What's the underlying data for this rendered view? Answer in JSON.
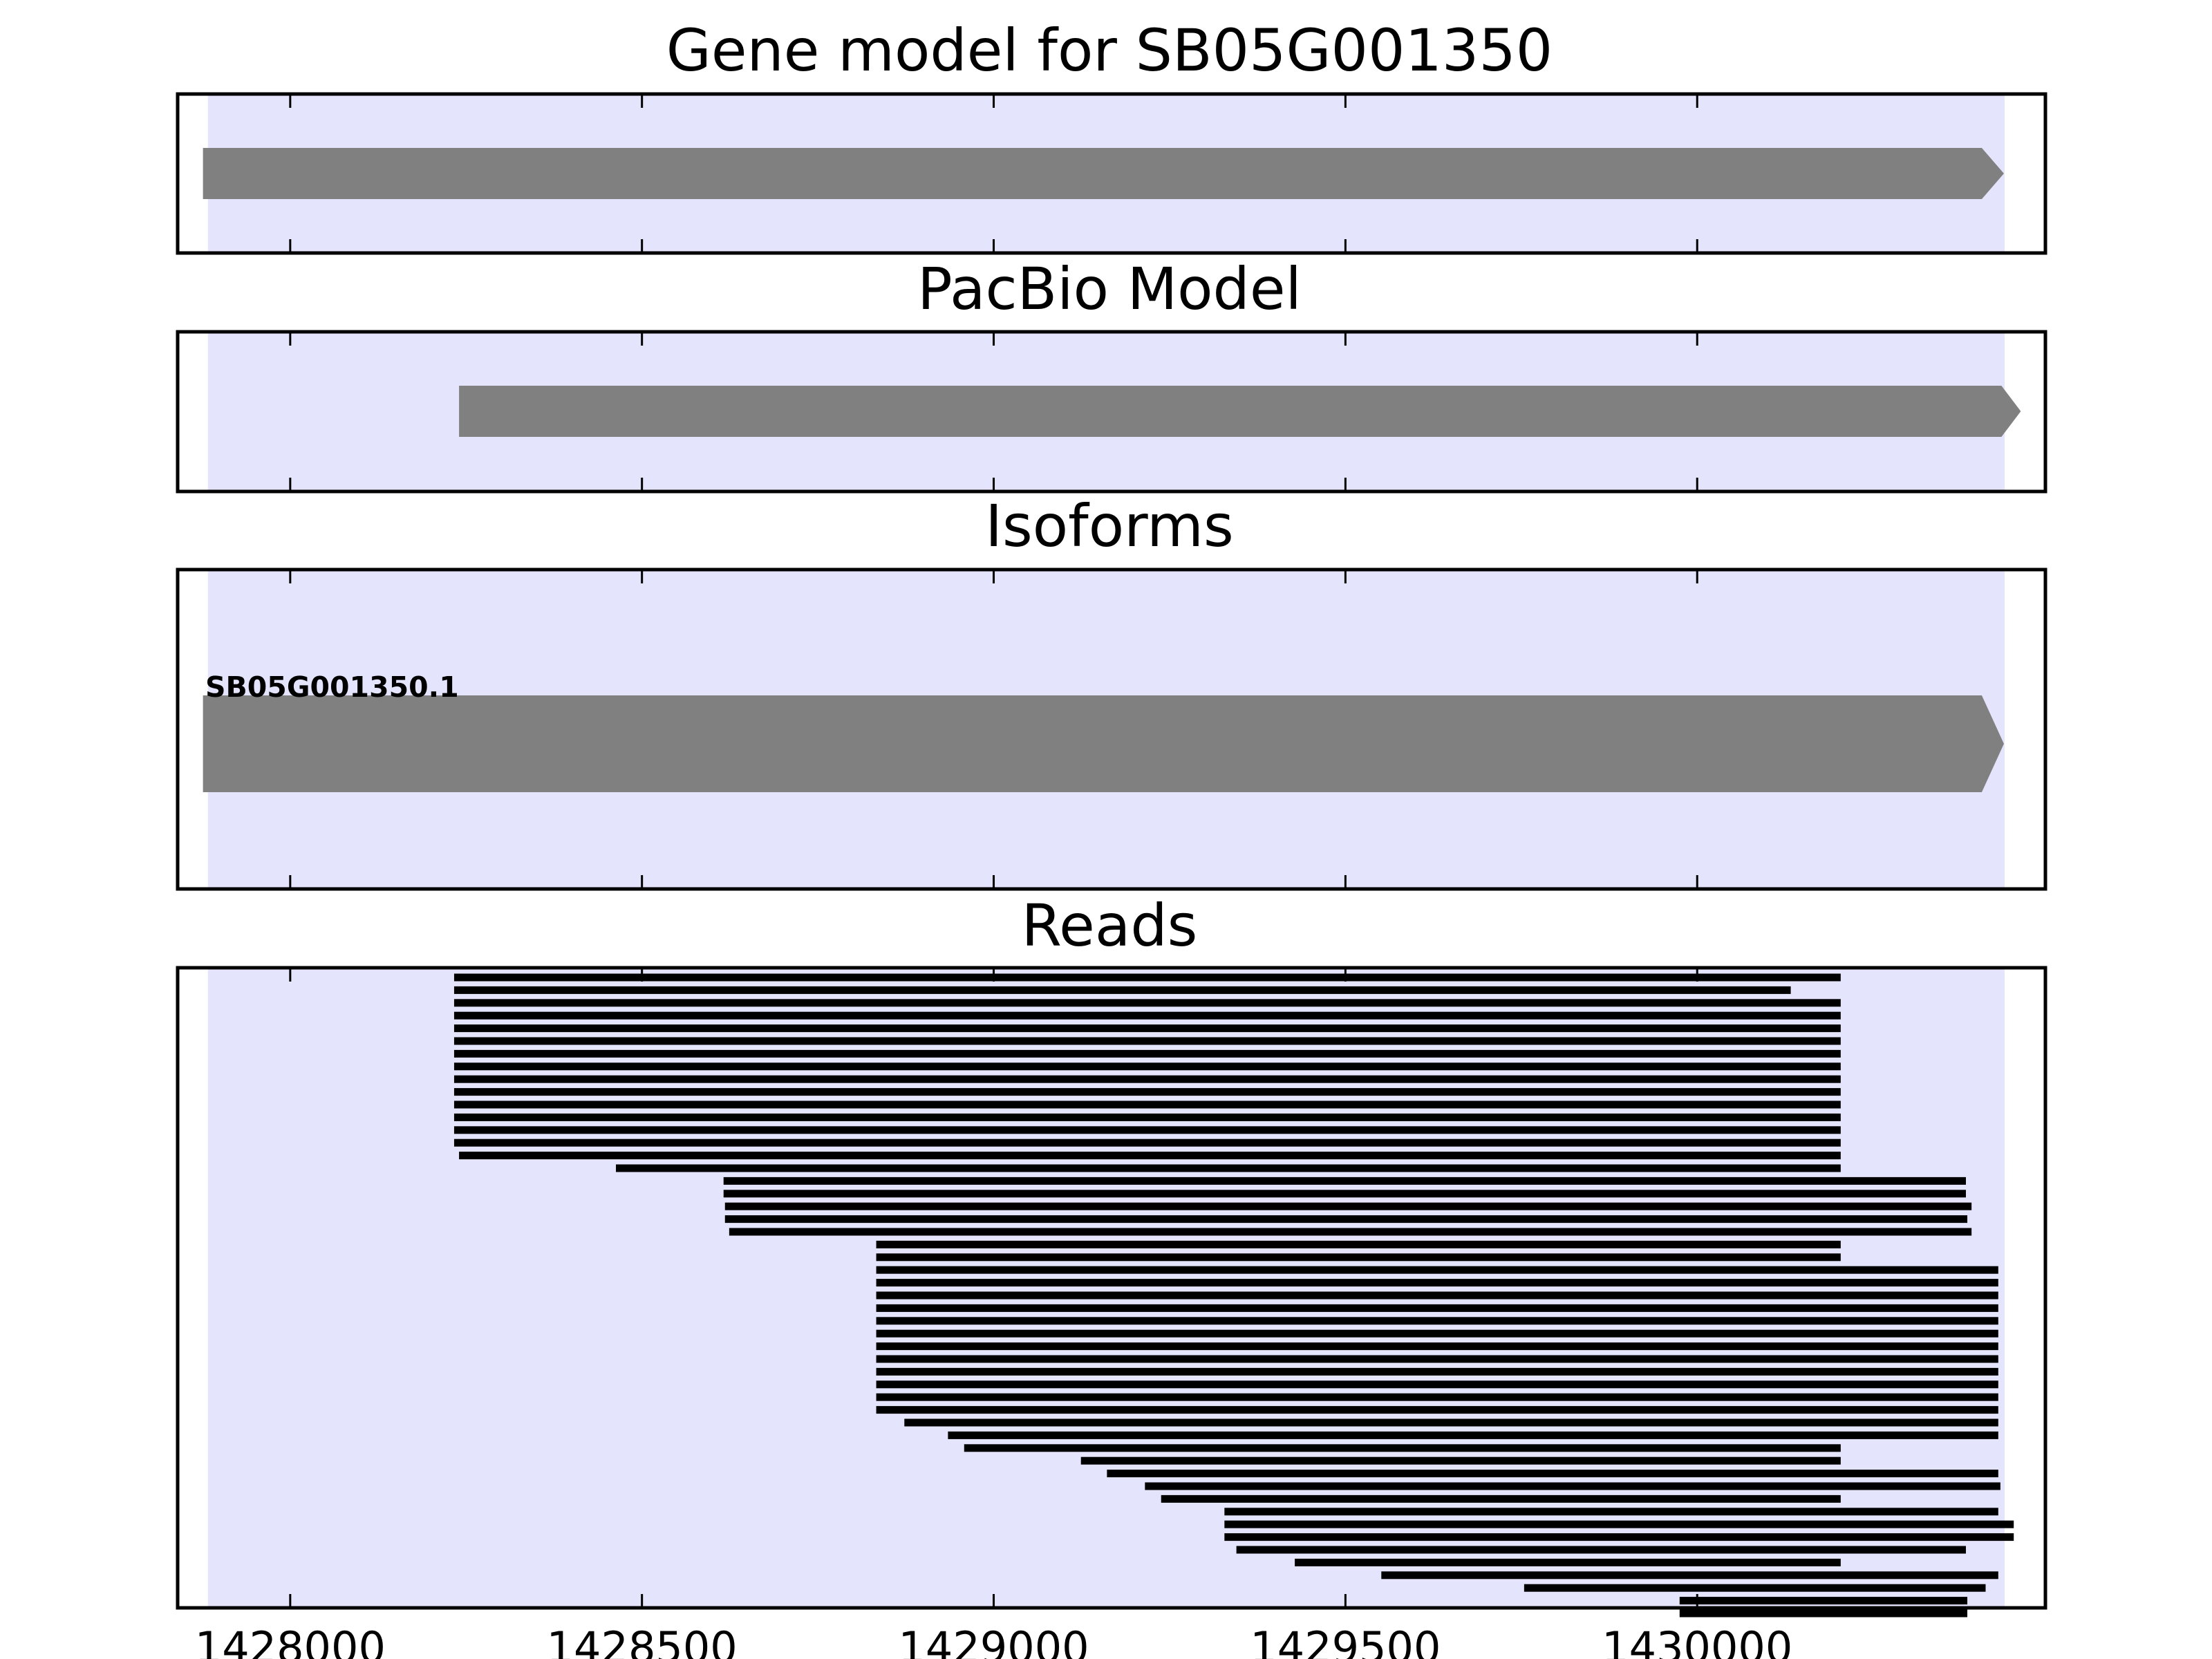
{
  "chart_data": {
    "type": "gene-track",
    "x_ticks": [
      1428000,
      1428500,
      1429000,
      1429500,
      1430000
    ],
    "x_range": [
      1427840,
      1430495
    ],
    "colors": {
      "highlight": "#e4e4fc",
      "feature": "#808080",
      "read": "#000000",
      "frame": "#000000"
    },
    "highlight_region": [
      1427883,
      1430437
    ],
    "panels": [
      {
        "id": "gene-model",
        "title": "Gene model for SB05G001350",
        "features": [
          {
            "start": 1427876,
            "end": 1430436,
            "strand": "+"
          }
        ]
      },
      {
        "id": "pacbio-model",
        "title": "PacBio Model",
        "features": [
          {
            "start": 1428240,
            "end": 1430460,
            "strand": "+"
          }
        ]
      },
      {
        "id": "isoforms",
        "title": "Isoforms",
        "features": [
          {
            "label": "SB05G001350.1",
            "start": 1427876,
            "end": 1430436,
            "strand": "+"
          }
        ]
      },
      {
        "id": "reads",
        "title": "Reads",
        "reads": [
          [
            1428233,
            1430204
          ],
          [
            1428233,
            1430133
          ],
          [
            1428233,
            1430204
          ],
          [
            1428233,
            1430204
          ],
          [
            1428233,
            1430204
          ],
          [
            1428233,
            1430204
          ],
          [
            1428233,
            1430204
          ],
          [
            1428233,
            1430204
          ],
          [
            1428233,
            1430204
          ],
          [
            1428233,
            1430204
          ],
          [
            1428233,
            1430204
          ],
          [
            1428233,
            1430204
          ],
          [
            1428233,
            1430204
          ],
          [
            1428233,
            1430204
          ],
          [
            1428240,
            1430204
          ],
          [
            1428463,
            1430204
          ],
          [
            1428616,
            1430382
          ],
          [
            1428616,
            1430382
          ],
          [
            1428618,
            1430390
          ],
          [
            1428618,
            1430384
          ],
          [
            1428624,
            1430390
          ],
          [
            1428833,
            1430204
          ],
          [
            1428833,
            1430204
          ],
          [
            1428833,
            1430428
          ],
          [
            1428833,
            1430428
          ],
          [
            1428833,
            1430428
          ],
          [
            1428833,
            1430428
          ],
          [
            1428833,
            1430428
          ],
          [
            1428833,
            1430428
          ],
          [
            1428833,
            1430428
          ],
          [
            1428833,
            1430428
          ],
          [
            1428833,
            1430428
          ],
          [
            1428833,
            1430428
          ],
          [
            1428833,
            1430428
          ],
          [
            1428833,
            1430428
          ],
          [
            1428873,
            1430428
          ],
          [
            1428935,
            1430428
          ],
          [
            1428958,
            1430204
          ],
          [
            1429124,
            1430204
          ],
          [
            1429161,
            1430428
          ],
          [
            1429215,
            1430431
          ],
          [
            1429238,
            1430204
          ],
          [
            1429328,
            1430428
          ],
          [
            1429328,
            1430450
          ],
          [
            1429328,
            1430450
          ],
          [
            1429345,
            1430382
          ],
          [
            1429428,
            1430204
          ],
          [
            1429551,
            1430428
          ],
          [
            1429754,
            1430410
          ],
          [
            1429975,
            1430384
          ],
          [
            1429975,
            1430384
          ]
        ]
      }
    ]
  }
}
